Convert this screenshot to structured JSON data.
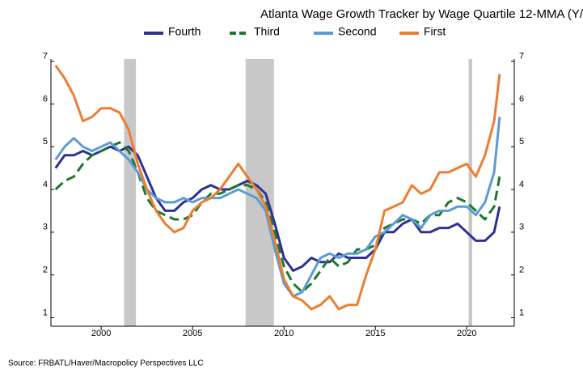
{
  "chart_data": {
    "type": "line",
    "title": "Atlanta Wage Growth Tracker by Wage Quartile 12-MMA (Y/",
    "source": "Source:  FRBATL/Haver/Macropolicy Perspectives LLC",
    "legend": "top",
    "x": [
      1997.5,
      1998,
      1998.5,
      1999,
      1999.5,
      2000,
      2000.5,
      2001,
      2001.5,
      2002,
      2002.5,
      2003,
      2003.5,
      2004,
      2004.5,
      2005,
      2005.5,
      2006,
      2006.5,
      2007,
      2007.5,
      2008,
      2008.5,
      2009,
      2009.5,
      2010,
      2010.5,
      2011,
      2011.5,
      2012,
      2012.5,
      2013,
      2013.5,
      2014,
      2014.5,
      2015,
      2015.5,
      2016,
      2016.5,
      2017,
      2017.5,
      2018,
      2018.5,
      2019,
      2019.5,
      2020,
      2020.5,
      2021,
      2021.5,
      2021.8
    ],
    "series": [
      {
        "name": "Fourth",
        "color": "#2e3192",
        "values": [
          4.5,
          4.8,
          4.8,
          4.9,
          4.8,
          4.9,
          5.0,
          4.9,
          5.0,
          4.8,
          4.3,
          3.8,
          3.5,
          3.5,
          3.7,
          3.8,
          4.0,
          4.1,
          4.0,
          4.0,
          4.1,
          4.2,
          4.1,
          3.9,
          3.2,
          2.4,
          2.1,
          2.2,
          2.4,
          2.3,
          2.3,
          2.5,
          2.4,
          2.4,
          2.4,
          2.6,
          3.0,
          3.0,
          3.2,
          3.3,
          3.0,
          3.0,
          3.1,
          3.1,
          3.2,
          3.0,
          2.8,
          2.8,
          3.0,
          3.6
        ]
      },
      {
        "name": "Third",
        "color": "#1a7a2e",
        "dashed": true,
        "values": [
          4.0,
          4.2,
          4.3,
          4.6,
          4.8,
          4.9,
          5.0,
          5.1,
          4.9,
          4.4,
          3.8,
          3.5,
          3.4,
          3.3,
          3.3,
          3.4,
          3.7,
          3.9,
          3.9,
          4.0,
          4.1,
          4.1,
          4.0,
          3.7,
          3.0,
          2.2,
          1.8,
          1.6,
          1.8,
          2.1,
          2.4,
          2.2,
          2.3,
          2.6,
          2.6,
          2.7,
          3.1,
          3.2,
          3.3,
          3.3,
          3.2,
          3.4,
          3.4,
          3.7,
          3.8,
          3.7,
          3.5,
          3.3,
          3.6,
          4.3
        ]
      },
      {
        "name": "Second",
        "color": "#5b9bd5",
        "values": [
          4.7,
          5.0,
          5.2,
          5.0,
          4.9,
          5.0,
          5.1,
          4.9,
          4.7,
          4.4,
          4.0,
          3.8,
          3.7,
          3.7,
          3.8,
          3.7,
          3.8,
          3.8,
          3.8,
          3.9,
          4.0,
          3.9,
          3.8,
          3.5,
          2.6,
          1.8,
          1.5,
          1.6,
          2.0,
          2.4,
          2.5,
          2.4,
          2.5,
          2.5,
          2.6,
          2.9,
          3.0,
          3.2,
          3.4,
          3.3,
          3.1,
          3.4,
          3.5,
          3.5,
          3.6,
          3.6,
          3.4,
          3.7,
          4.4,
          5.7
        ]
      },
      {
        "name": "First",
        "color": "#ed7d31",
        "values": [
          6.9,
          6.6,
          6.2,
          5.6,
          5.7,
          5.9,
          5.9,
          5.8,
          5.4,
          4.6,
          4.0,
          3.5,
          3.2,
          3.0,
          3.1,
          3.5,
          3.7,
          3.8,
          4.0,
          4.3,
          4.6,
          4.3,
          4.0,
          3.6,
          2.8,
          1.9,
          1.5,
          1.4,
          1.2,
          1.3,
          1.5,
          1.2,
          1.3,
          1.3,
          2.0,
          2.6,
          3.5,
          3.6,
          3.7,
          4.1,
          3.9,
          4.0,
          4.4,
          4.4,
          4.5,
          4.6,
          4.3,
          4.8,
          5.6,
          6.7
        ]
      }
    ],
    "recessions": [
      [
        2001.25,
        2001.9
      ],
      [
        2007.9,
        2009.45
      ],
      [
        2020.1,
        2020.3
      ]
    ],
    "recession_color": "#c8c8c8",
    "xlim": [
      1997.25,
      2022.6
    ],
    "xticks": [
      2000,
      2005,
      2010,
      2015,
      2020
    ],
    "ylim": [
      0.8,
      7.05
    ],
    "yticks": [
      1,
      2,
      3,
      4,
      5,
      6,
      7
    ],
    "y2lim": [
      0.8,
      7.05
    ],
    "y2ticks": [
      1,
      2,
      3,
      4,
      5,
      6,
      7
    ]
  }
}
